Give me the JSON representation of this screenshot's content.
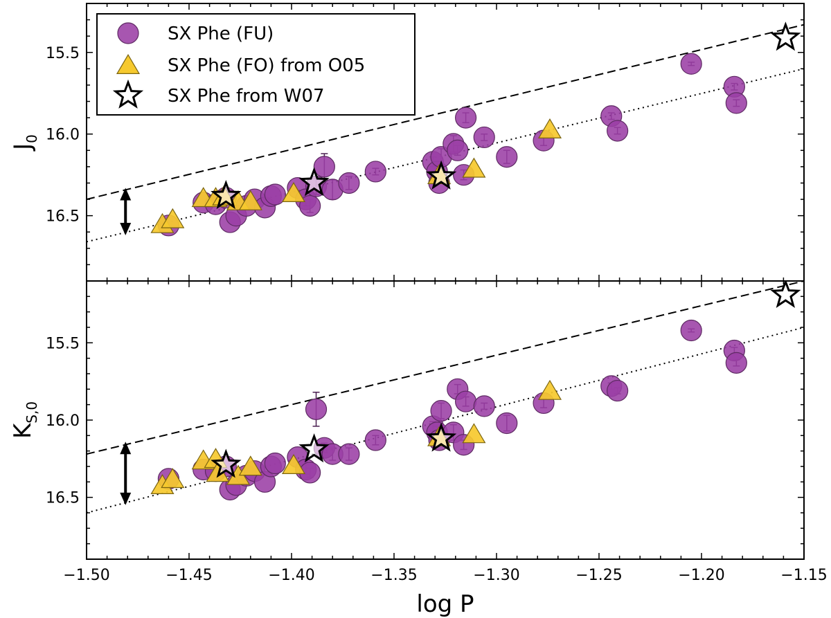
{
  "chart_data": {
    "type": "scatter",
    "x_axis": {
      "label": "log P",
      "range": [
        -1.5,
        -1.15
      ],
      "ticks": [
        -1.5,
        -1.45,
        -1.4,
        -1.35,
        -1.3,
        -1.25,
        -1.2,
        -1.15
      ],
      "tick_labels": [
        "−1.50",
        "−1.45",
        "−1.40",
        "−1.35",
        "−1.30",
        "−1.25",
        "−1.20",
        "−1.15"
      ]
    },
    "legend": {
      "placement": "top-left",
      "entries": [
        {
          "label": "SX Phe (FU)",
          "marker": "circle",
          "color": "#9b3fa5"
        },
        {
          "label": "SX Phe (FO) from O05",
          "marker": "triangle",
          "color": "#f2c62b"
        },
        {
          "label": "SX Phe from W07",
          "marker": "star",
          "color": "#ffffff"
        }
      ]
    },
    "panels": [
      {
        "id": "top",
        "ylabel_main": "J",
        "ylabel_sub": "0",
        "y_range_inverted": [
          15.2,
          16.9
        ],
        "y_ticks": [
          15.5,
          16.0,
          16.5
        ],
        "y_tick_labels": [
          "15.5",
          "16.0",
          "16.5"
        ],
        "lines": [
          {
            "style": "dashed",
            "x": [
              -1.5,
              -1.15
            ],
            "y": [
              16.4,
              15.33
            ]
          },
          {
            "style": "dotted",
            "x": [
              -1.5,
              -1.15
            ],
            "y": [
              16.66,
              15.6
            ]
          }
        ],
        "arrow": {
          "x": -1.481,
          "y_from": 16.33,
          "y_to": 16.62
        },
        "series": [
          {
            "name": "SX Phe (FU)",
            "x": [
              -1.46,
              -1.443,
              -1.437,
              -1.432,
              -1.43,
              -1.427,
              -1.422,
              -1.418,
              -1.413,
              -1.41,
              -1.408,
              -1.397,
              -1.393,
              -1.391,
              -1.388,
              -1.384,
              -1.38,
              -1.372,
              -1.359,
              -1.331,
              -1.329,
              -1.328,
              -1.327,
              -1.321,
              -1.319,
              -1.316,
              -1.315,
              -1.306,
              -1.295,
              -1.277,
              -1.244,
              -1.241,
              -1.205,
              -1.184,
              -1.183
            ],
            "y": [
              16.56,
              16.42,
              16.43,
              16.39,
              16.54,
              16.5,
              16.44,
              16.4,
              16.45,
              16.38,
              16.37,
              16.33,
              16.4,
              16.44,
              16.32,
              16.2,
              16.34,
              16.3,
              16.23,
              16.17,
              16.23,
              16.3,
              16.14,
              16.06,
              16.1,
              16.25,
              15.9,
              16.02,
              16.14,
              16.04,
              15.89,
              15.98,
              15.57,
              15.71,
              15.81
            ],
            "err": [
              0.0,
              0.0,
              0.0,
              0.0,
              0.0,
              0.0,
              0.0,
              0.0,
              0.0,
              0.0,
              0.0,
              0.0,
              0.04,
              0.04,
              0.05,
              0.08,
              0.06,
              0.04,
              0.02,
              0.03,
              0.04,
              0.0,
              0.05,
              0.05,
              0.03,
              0.03,
              0.03,
              0.02,
              0.04,
              0.03,
              0.02,
              0.02,
              0.01,
              0.02,
              0.02
            ]
          },
          {
            "name": "SX Phe (FO) from O05",
            "x": [
              -1.463,
              -1.458,
              -1.443,
              -1.437,
              -1.433,
              -1.426,
              -1.42,
              -1.399,
              -1.328,
              -1.311,
              -1.274
            ],
            "y": [
              16.56,
              16.53,
              16.4,
              16.4,
              16.39,
              16.42,
              16.42,
              16.37,
              16.26,
              16.22,
              15.98
            ]
          },
          {
            "name": "SX Phe from W07",
            "x": [
              -1.432,
              -1.389,
              -1.327,
              -1.159
            ],
            "y": [
              16.38,
              16.3,
              16.26,
              15.41
            ]
          }
        ]
      },
      {
        "id": "bottom",
        "ylabel_main": "K",
        "ylabel_sub": "S,0",
        "y_range_inverted": [
          15.1,
          16.9
        ],
        "y_ticks": [
          15.5,
          16.0,
          16.5
        ],
        "y_tick_labels": [
          "15.5",
          "16.0",
          "16.5"
        ],
        "lines": [
          {
            "style": "dashed",
            "x": [
              -1.5,
              -1.15
            ],
            "y": [
              16.22,
              15.1
            ]
          },
          {
            "style": "dotted",
            "x": [
              -1.5,
              -1.15
            ],
            "y": [
              16.6,
              15.4
            ]
          }
        ],
        "arrow": {
          "x": -1.481,
          "y_from": 16.14,
          "y_to": 16.55
        },
        "series": [
          {
            "name": "SX Phe (FU)",
            "x": [
              -1.46,
              -1.443,
              -1.437,
              -1.432,
              -1.43,
              -1.427,
              -1.422,
              -1.418,
              -1.413,
              -1.41,
              -1.408,
              -1.397,
              -1.393,
              -1.391,
              -1.388,
              -1.384,
              -1.38,
              -1.372,
              -1.359,
              -1.331,
              -1.329,
              -1.328,
              -1.327,
              -1.321,
              -1.319,
              -1.316,
              -1.315,
              -1.306,
              -1.295,
              -1.277,
              -1.244,
              -1.241,
              -1.205,
              -1.184,
              -1.183
            ],
            "y": [
              16.38,
              16.32,
              16.33,
              16.3,
              16.45,
              16.42,
              16.36,
              16.33,
              16.4,
              16.3,
              16.28,
              16.24,
              16.32,
              16.34,
              15.93,
              16.18,
              16.22,
              16.22,
              16.13,
              16.04,
              16.08,
              16.13,
              15.94,
              16.08,
              15.8,
              16.16,
              15.88,
              15.91,
              16.02,
              15.89,
              15.78,
              15.81,
              15.42,
              15.55,
              15.63
            ],
            "err": [
              0.0,
              0.0,
              0.0,
              0.0,
              0.0,
              0.0,
              0.0,
              0.0,
              0.0,
              0.0,
              0.0,
              0.0,
              0.03,
              0.03,
              0.11,
              0.03,
              0.04,
              0.04,
              0.03,
              0.03,
              0.04,
              0.0,
              0.05,
              0.05,
              0.03,
              0.03,
              0.03,
              0.02,
              0.05,
              0.03,
              0.02,
              0.02,
              0.01,
              0.02,
              0.02
            ]
          },
          {
            "name": "SX Phe (FO) from O05",
            "x": [
              -1.463,
              -1.458,
              -1.443,
              -1.437,
              -1.436,
              -1.426,
              -1.42,
              -1.399,
              -1.328,
              -1.311,
              -1.274
            ],
            "y": [
              16.43,
              16.39,
              16.27,
              16.26,
              16.35,
              16.37,
              16.31,
              16.3,
              16.12,
              16.1,
              15.82
            ]
          },
          {
            "name": "SX Phe from W07",
            "x": [
              -1.432,
              -1.389,
              -1.327,
              -1.159
            ],
            "y": [
              16.29,
              16.19,
              16.12,
              15.19
            ]
          }
        ]
      }
    ]
  }
}
